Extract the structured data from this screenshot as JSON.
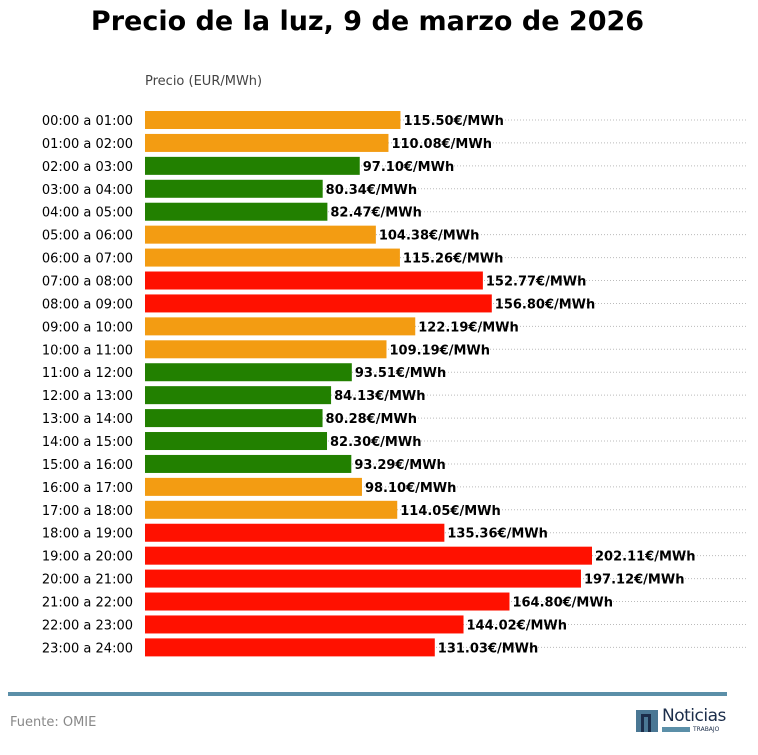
{
  "chart_data": {
    "type": "bar",
    "orientation": "horizontal",
    "title": "Precio de la luz, 9 de marzo de 2026",
    "xlabel": "Precio (EUR/MWh)",
    "value_suffix": "€/MWh",
    "categories": [
      "00:00 a 01:00",
      "01:00 a 02:00",
      "02:00 a 03:00",
      "03:00 a 04:00",
      "04:00 a 05:00",
      "05:00 a 06:00",
      "06:00 a 07:00",
      "07:00 a 08:00",
      "08:00 a 09:00",
      "09:00 a 10:00",
      "10:00 a 11:00",
      "11:00 a 12:00",
      "12:00 a 13:00",
      "13:00 a 14:00",
      "14:00 a 15:00",
      "15:00 a 16:00",
      "16:00 a 17:00",
      "17:00 a 18:00",
      "18:00 a 19:00",
      "19:00 a 20:00",
      "20:00 a 21:00",
      "21:00 a 22:00",
      "22:00 a 23:00",
      "23:00 a 24:00"
    ],
    "values": [
      115.5,
      110.08,
      97.1,
      80.34,
      82.47,
      104.38,
      115.26,
      152.77,
      156.8,
      122.19,
      109.19,
      93.51,
      84.13,
      80.28,
      82.3,
      93.29,
      98.1,
      114.05,
      135.36,
      202.11,
      197.12,
      164.8,
      144.02,
      131.03
    ],
    "levels": [
      "mid",
      "mid",
      "low",
      "low",
      "low",
      "mid",
      "mid",
      "high",
      "high",
      "mid",
      "mid",
      "low",
      "low",
      "low",
      "low",
      "low",
      "mid",
      "mid",
      "high",
      "high",
      "high",
      "high",
      "high",
      "high"
    ],
    "colors": {
      "low": "#228000",
      "mid": "#f39c12",
      "high": "#ff1100"
    },
    "xlim": [
      0,
      202.11
    ],
    "grid": "dotted horizontal"
  },
  "footer": {
    "source": "Fuente: OMIE",
    "logo_text": "Noticias",
    "logo_sub": "TRABAJO"
  }
}
